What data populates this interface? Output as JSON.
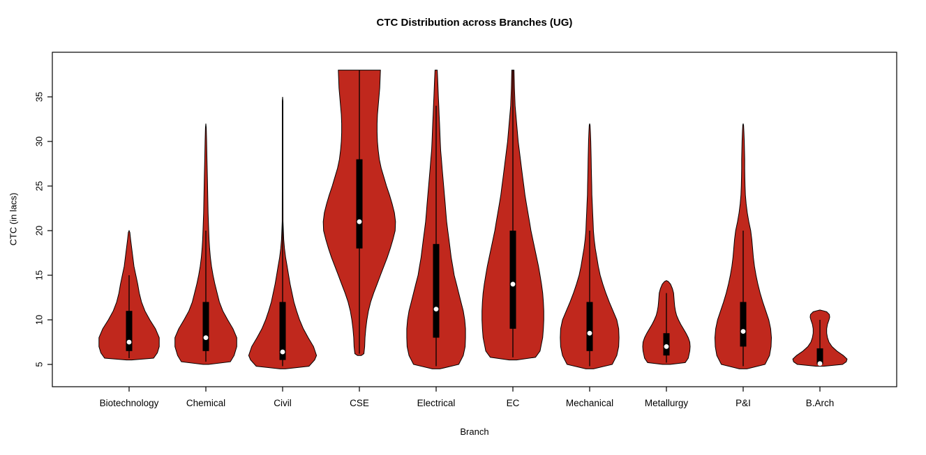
{
  "title": "CTC Distribution across Branches (UG)",
  "chart_data": {
    "type": "violin",
    "title": "CTC Distribution across Branches (UG)",
    "xlabel": "Branch",
    "ylabel": "CTC (in lacs)",
    "ylim": [
      2.5,
      40
    ],
    "yticks": [
      5,
      10,
      15,
      20,
      25,
      30,
      35
    ],
    "grid": false,
    "legend": "none",
    "colors": {
      "violin_fill": "#c0281d",
      "violin_border": "#000000",
      "box": "#000000",
      "whisker": "#000000",
      "median_dot": "#ffffff",
      "axis": "#000000"
    },
    "categories": [
      "Biotechnology",
      "Chemical",
      "Civil",
      "CSE",
      "Electrical",
      "EC",
      "Mechanical",
      "Metallurgy",
      "P&I",
      "B.Arch"
    ],
    "series": [
      {
        "branch": "Biotechnology",
        "min": 5.5,
        "max": 20,
        "q1": 6.5,
        "q3": 11,
        "median": 7.5,
        "whisker_low": 5.7,
        "whisker_high": 15,
        "density_profile": [
          [
            5.5,
            0.07
          ],
          [
            5.7,
            0.65
          ],
          [
            6.3,
            0.75
          ],
          [
            7,
            0.8
          ],
          [
            8,
            0.8
          ],
          [
            9,
            0.7
          ],
          [
            10,
            0.55
          ],
          [
            11,
            0.42
          ],
          [
            12,
            0.33
          ],
          [
            13,
            0.27
          ],
          [
            14,
            0.23
          ],
          [
            15,
            0.18
          ],
          [
            16,
            0.13
          ],
          [
            17,
            0.1
          ],
          [
            18,
            0.07
          ],
          [
            19,
            0.04
          ],
          [
            19.8,
            0.02
          ],
          [
            20,
            0
          ]
        ]
      },
      {
        "branch": "Chemical",
        "min": 5,
        "max": 32,
        "q1": 6.5,
        "q3": 12,
        "median": 8,
        "whisker_low": 5.3,
        "whisker_high": 20,
        "density_profile": [
          [
            5,
            0.07
          ],
          [
            5.3,
            0.65
          ],
          [
            6,
            0.75
          ],
          [
            7,
            0.82
          ],
          [
            8,
            0.82
          ],
          [
            9,
            0.72
          ],
          [
            10,
            0.58
          ],
          [
            11,
            0.45
          ],
          [
            12,
            0.36
          ],
          [
            13,
            0.3
          ],
          [
            14,
            0.24
          ],
          [
            15,
            0.19
          ],
          [
            16,
            0.15
          ],
          [
            17,
            0.12
          ],
          [
            18,
            0.1
          ],
          [
            19,
            0.085
          ],
          [
            20,
            0.075
          ],
          [
            22,
            0.06
          ],
          [
            24,
            0.05
          ],
          [
            26,
            0.04
          ],
          [
            28,
            0.03
          ],
          [
            30,
            0.02
          ],
          [
            31.5,
            0.012
          ],
          [
            32,
            0
          ]
        ]
      },
      {
        "branch": "Civil",
        "min": 4.5,
        "max": 35,
        "q1": 5.5,
        "q3": 12,
        "median": 6.4,
        "whisker_low": 4.8,
        "whisker_high": 21,
        "density_profile": [
          [
            4.5,
            0.07
          ],
          [
            4.8,
            0.7
          ],
          [
            5.5,
            0.85
          ],
          [
            6,
            0.9
          ],
          [
            7,
            0.82
          ],
          [
            8,
            0.68
          ],
          [
            9,
            0.55
          ],
          [
            10,
            0.45
          ],
          [
            11,
            0.37
          ],
          [
            12,
            0.3
          ],
          [
            13,
            0.25
          ],
          [
            14,
            0.2
          ],
          [
            15,
            0.16
          ],
          [
            16,
            0.12
          ],
          [
            17,
            0.08
          ],
          [
            18,
            0.05
          ],
          [
            19,
            0.03
          ],
          [
            20,
            0.02
          ],
          [
            21,
            0.012
          ],
          [
            25,
            0.009
          ],
          [
            29,
            0.009
          ],
          [
            32,
            0.009
          ],
          [
            34.5,
            0.009
          ],
          [
            35,
            0
          ]
        ]
      },
      {
        "branch": "CSE",
        "min": 6,
        "max": 38,
        "q1": 18,
        "q3": 28,
        "median": 21,
        "whisker_low": 6.2,
        "whisker_high": 38,
        "density_profile": [
          [
            6,
            0.05
          ],
          [
            6.2,
            0.12
          ],
          [
            7,
            0.14
          ],
          [
            8,
            0.15
          ],
          [
            9,
            0.17
          ],
          [
            10,
            0.2
          ],
          [
            11,
            0.24
          ],
          [
            12,
            0.3
          ],
          [
            13,
            0.38
          ],
          [
            14,
            0.47
          ],
          [
            15,
            0.56
          ],
          [
            16,
            0.65
          ],
          [
            17,
            0.74
          ],
          [
            18,
            0.82
          ],
          [
            19,
            0.89
          ],
          [
            20,
            0.95
          ],
          [
            21,
            0.96
          ],
          [
            22,
            0.93
          ],
          [
            23,
            0.87
          ],
          [
            24,
            0.8
          ],
          [
            25,
            0.72
          ],
          [
            26,
            0.65
          ],
          [
            27,
            0.58
          ],
          [
            28,
            0.53
          ],
          [
            29,
            0.5
          ],
          [
            30,
            0.48
          ],
          [
            31,
            0.47
          ],
          [
            32,
            0.47
          ],
          [
            33,
            0.48
          ],
          [
            34,
            0.5
          ],
          [
            35,
            0.52
          ],
          [
            36,
            0.54
          ],
          [
            37,
            0.55
          ],
          [
            38,
            0.56
          ]
        ]
      },
      {
        "branch": "Electrical",
        "min": 4.5,
        "max": 38,
        "q1": 8,
        "q3": 18.5,
        "median": 11.2,
        "whisker_low": 4.8,
        "whisker_high": 34,
        "density_profile": [
          [
            4.5,
            0.1
          ],
          [
            5,
            0.6
          ],
          [
            6,
            0.72
          ],
          [
            7,
            0.77
          ],
          [
            8,
            0.78
          ],
          [
            9,
            0.78
          ],
          [
            10,
            0.76
          ],
          [
            11,
            0.72
          ],
          [
            12,
            0.66
          ],
          [
            13,
            0.6
          ],
          [
            14,
            0.54
          ],
          [
            15,
            0.48
          ],
          [
            16,
            0.44
          ],
          [
            17,
            0.4
          ],
          [
            18,
            0.37
          ],
          [
            19,
            0.34
          ],
          [
            20,
            0.31
          ],
          [
            21,
            0.28
          ],
          [
            22,
            0.26
          ],
          [
            23,
            0.24
          ],
          [
            24,
            0.22
          ],
          [
            25,
            0.2
          ],
          [
            26,
            0.18
          ],
          [
            27,
            0.16
          ],
          [
            28,
            0.14
          ],
          [
            29,
            0.12
          ],
          [
            30,
            0.11
          ],
          [
            31,
            0.1
          ],
          [
            32,
            0.09
          ],
          [
            33,
            0.08
          ],
          [
            34,
            0.07
          ],
          [
            35,
            0.06
          ],
          [
            36,
            0.05
          ],
          [
            37,
            0.04
          ],
          [
            38,
            0.03
          ]
        ]
      },
      {
        "branch": "EC",
        "min": 5.5,
        "max": 38,
        "q1": 9,
        "q3": 20,
        "median": 14,
        "whisker_low": 5.8,
        "whisker_high": 38,
        "density_profile": [
          [
            5.5,
            0.1
          ],
          [
            5.8,
            0.6
          ],
          [
            6.5,
            0.72
          ],
          [
            8,
            0.79
          ],
          [
            9,
            0.81
          ],
          [
            10,
            0.82
          ],
          [
            11,
            0.82
          ],
          [
            12,
            0.81
          ],
          [
            13,
            0.79
          ],
          [
            14,
            0.76
          ],
          [
            15,
            0.72
          ],
          [
            16,
            0.68
          ],
          [
            17,
            0.63
          ],
          [
            18,
            0.58
          ],
          [
            19,
            0.53
          ],
          [
            20,
            0.48
          ],
          [
            21,
            0.44
          ],
          [
            22,
            0.4
          ],
          [
            23,
            0.36
          ],
          [
            24,
            0.32
          ],
          [
            25,
            0.29
          ],
          [
            26,
            0.26
          ],
          [
            27,
            0.23
          ],
          [
            28,
            0.2
          ],
          [
            29,
            0.17
          ],
          [
            30,
            0.14
          ],
          [
            31,
            0.12
          ],
          [
            32,
            0.1
          ],
          [
            33,
            0.08
          ],
          [
            34,
            0.06
          ],
          [
            35,
            0.05
          ],
          [
            36,
            0.04
          ],
          [
            37,
            0.035
          ],
          [
            38,
            0.03
          ]
        ]
      },
      {
        "branch": "Mechanical",
        "min": 4.5,
        "max": 32,
        "q1": 6.5,
        "q3": 12,
        "median": 8.5,
        "whisker_low": 4.8,
        "whisker_high": 20,
        "density_profile": [
          [
            4.5,
            0.1
          ],
          [
            5,
            0.6
          ],
          [
            6,
            0.72
          ],
          [
            7,
            0.77
          ],
          [
            8,
            0.78
          ],
          [
            9,
            0.77
          ],
          [
            10,
            0.72
          ],
          [
            11,
            0.62
          ],
          [
            12,
            0.52
          ],
          [
            13,
            0.43
          ],
          [
            14,
            0.35
          ],
          [
            15,
            0.28
          ],
          [
            16,
            0.23
          ],
          [
            17,
            0.19
          ],
          [
            18,
            0.15
          ],
          [
            19,
            0.12
          ],
          [
            20,
            0.1
          ],
          [
            21,
            0.09
          ],
          [
            22,
            0.08
          ],
          [
            23,
            0.07
          ],
          [
            24,
            0.06
          ],
          [
            25,
            0.055
          ],
          [
            26,
            0.05
          ],
          [
            27,
            0.045
          ],
          [
            28,
            0.04
          ],
          [
            29,
            0.035
          ],
          [
            30,
            0.03
          ],
          [
            31,
            0.02
          ],
          [
            31.8,
            0.012
          ],
          [
            32,
            0
          ]
        ]
      },
      {
        "branch": "Metallurgy",
        "min": 5,
        "max": 14.4,
        "q1": 6,
        "q3": 8.5,
        "median": 7,
        "whisker_low": 5.2,
        "whisker_high": 13,
        "density_profile": [
          [
            5,
            0.1
          ],
          [
            5.2,
            0.5
          ],
          [
            5.7,
            0.58
          ],
          [
            6.5,
            0.62
          ],
          [
            7,
            0.63
          ],
          [
            7.5,
            0.62
          ],
          [
            8,
            0.58
          ],
          [
            8.5,
            0.52
          ],
          [
            9,
            0.45
          ],
          [
            9.5,
            0.38
          ],
          [
            10,
            0.32
          ],
          [
            10.5,
            0.27
          ],
          [
            11,
            0.24
          ],
          [
            11.5,
            0.22
          ],
          [
            12,
            0.21
          ],
          [
            12.5,
            0.2
          ],
          [
            13,
            0.19
          ],
          [
            13.5,
            0.16
          ],
          [
            14,
            0.11
          ],
          [
            14.3,
            0.05
          ],
          [
            14.4,
            0
          ]
        ]
      },
      {
        "branch": "P&I",
        "min": 4.5,
        "max": 32,
        "q1": 7,
        "q3": 12,
        "median": 8.7,
        "whisker_low": 4.8,
        "whisker_high": 20,
        "density_profile": [
          [
            4.5,
            0.1
          ],
          [
            5,
            0.58
          ],
          [
            6,
            0.7
          ],
          [
            7,
            0.74
          ],
          [
            8,
            0.75
          ],
          [
            9,
            0.73
          ],
          [
            10,
            0.68
          ],
          [
            11,
            0.6
          ],
          [
            12,
            0.52
          ],
          [
            13,
            0.45
          ],
          [
            14,
            0.39
          ],
          [
            15,
            0.34
          ],
          [
            16,
            0.3
          ],
          [
            17,
            0.27
          ],
          [
            18,
            0.25
          ],
          [
            19,
            0.23
          ],
          [
            20,
            0.2
          ],
          [
            21,
            0.15
          ],
          [
            22,
            0.11
          ],
          [
            23,
            0.08
          ],
          [
            24,
            0.06
          ],
          [
            25,
            0.05
          ],
          [
            26,
            0.045
          ],
          [
            27,
            0.04
          ],
          [
            28,
            0.04
          ],
          [
            29,
            0.035
          ],
          [
            30,
            0.03
          ],
          [
            31,
            0.02
          ],
          [
            31.8,
            0.012
          ],
          [
            32,
            0
          ]
        ]
      },
      {
        "branch": "B.Arch",
        "min": 4.8,
        "max": 11.1,
        "q1": 5,
        "q3": 6.8,
        "median": 5.1,
        "whisker_low": 4.9,
        "whisker_high": 10,
        "density_profile": [
          [
            4.8,
            0.1
          ],
          [
            5,
            0.6
          ],
          [
            5.3,
            0.7
          ],
          [
            5.6,
            0.72
          ],
          [
            6,
            0.62
          ],
          [
            6.5,
            0.45
          ],
          [
            7,
            0.32
          ],
          [
            7.5,
            0.24
          ],
          [
            8,
            0.2
          ],
          [
            8.5,
            0.18
          ],
          [
            9,
            0.18
          ],
          [
            9.5,
            0.2
          ],
          [
            10,
            0.24
          ],
          [
            10.3,
            0.26
          ],
          [
            10.6,
            0.25
          ],
          [
            10.9,
            0.18
          ],
          [
            11,
            0.1
          ],
          [
            11.1,
            0
          ]
        ]
      }
    ]
  }
}
